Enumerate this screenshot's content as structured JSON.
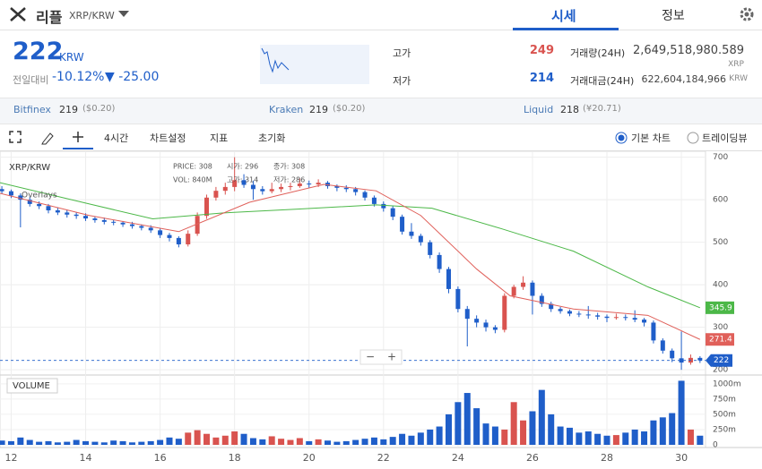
{
  "header": {
    "name": "리플",
    "pair": "XRP/KRW",
    "tabs": [
      "시세",
      "정보"
    ]
  },
  "quote": {
    "price": "222",
    "unit": "KRW",
    "change_label": "전일대비",
    "change_pct": "-10.12%",
    "change_abs": "▼ -25.00"
  },
  "stats": {
    "high_label": "고가",
    "high": "249",
    "low_label": "저가",
    "low": "214",
    "volume_label": "거래량(24H)",
    "volume": "2,649,518,980.589",
    "volume_unit": "XRP",
    "amount_label": "거래대금(24H)",
    "amount": "622,604,184,966",
    "amount_unit": "KRW"
  },
  "exchanges": [
    {
      "name": "Bitfinex",
      "price": "219",
      "usd": "($0.20)"
    },
    {
      "name": "Kraken",
      "price": "219",
      "usd": "($0.20)"
    },
    {
      "name": "Liquid",
      "price": "218",
      "usd": "(¥20.71)"
    }
  ],
  "toolbar": {
    "interval": "4시간",
    "settings": "차트설정",
    "indicators": "지표",
    "reset": "초기화",
    "basic": "기본 차트",
    "tradingview": "트레이딩뷰"
  },
  "chart_data": {
    "type": "candlestick",
    "title": "XRP/KRW",
    "legend": [
      "PRICE: 308",
      "시가: 296",
      "종가: 308",
      "VOL: 840M",
      "고가: 314",
      "저가: 286"
    ],
    "overlays_label": "Overlays",
    "volume_title": "VOLUME",
    "zoom": [
      "−",
      "+"
    ],
    "up_color": "#d9534f",
    "down_color": "#1f5ec9",
    "xlim": [
      11.7,
      30.6
    ],
    "xticks": [
      12,
      14,
      16,
      18,
      20,
      22,
      24,
      26,
      28,
      30
    ],
    "ylim": [
      194,
      714
    ],
    "yticks": [
      200,
      300,
      400,
      500,
      600,
      700
    ],
    "vlim": [
      0,
      1100
    ],
    "vticks": [
      0,
      {
        "value": 250,
        "label": "250m"
      },
      {
        "value": 500,
        "label": "500m"
      },
      {
        "value": 750,
        "label": "750m"
      },
      {
        "value": 1000,
        "label": "1000m"
      }
    ],
    "x": [
      11.75,
      12,
      12.25,
      12.5,
      12.75,
      13,
      13.25,
      13.5,
      13.75,
      14,
      14.25,
      14.5,
      14.75,
      15,
      15.25,
      15.5,
      15.75,
      16,
      16.25,
      16.5,
      16.75,
      17,
      17.25,
      17.5,
      17.75,
      18,
      18.25,
      18.5,
      18.75,
      19,
      19.25,
      19.5,
      19.75,
      20,
      20.25,
      20.5,
      20.75,
      21,
      21.25,
      21.5,
      21.75,
      22,
      22.25,
      22.5,
      22.75,
      23,
      23.25,
      23.5,
      23.75,
      24,
      24.25,
      24.5,
      24.75,
      25,
      25.25,
      25.5,
      25.75,
      26,
      26.25,
      26.5,
      26.75,
      27,
      27.25,
      27.5,
      27.75,
      28,
      28.25,
      28.5,
      28.75,
      29,
      29.25,
      29.5,
      29.75,
      30,
      30.25,
      30.5
    ],
    "ohlc": [
      [
        625,
        632,
        614,
        620
      ],
      [
        620,
        624,
        604,
        610
      ],
      [
        610,
        615,
        535,
        600
      ],
      [
        600,
        606,
        584,
        590
      ],
      [
        590,
        596,
        578,
        585
      ],
      [
        585,
        590,
        568,
        575
      ],
      [
        575,
        582,
        564,
        570
      ],
      [
        570,
        576,
        558,
        565
      ],
      [
        565,
        570,
        555,
        562
      ],
      [
        562,
        568,
        550,
        556
      ],
      [
        556,
        560,
        546,
        552
      ],
      [
        552,
        558,
        542,
        548
      ],
      [
        548,
        553,
        540,
        546
      ],
      [
        546,
        550,
        536,
        542
      ],
      [
        542,
        548,
        532,
        538
      ],
      [
        538,
        542,
        528,
        534
      ],
      [
        534,
        540,
        522,
        528
      ],
      [
        528,
        532,
        510,
        517
      ],
      [
        517,
        522,
        502,
        510
      ],
      [
        510,
        514,
        488,
        495
      ],
      [
        495,
        528,
        490,
        520
      ],
      [
        520,
        570,
        515,
        562
      ],
      [
        562,
        612,
        555,
        605
      ],
      [
        605,
        630,
        598,
        621
      ],
      [
        621,
        640,
        612,
        630
      ],
      [
        630,
        700,
        620,
        646
      ],
      [
        646,
        660,
        628,
        635
      ],
      [
        635,
        645,
        600,
        625
      ],
      [
        625,
        632,
        612,
        620
      ],
      [
        620,
        640,
        615,
        625
      ],
      [
        625,
        638,
        618,
        630
      ],
      [
        630,
        640,
        622,
        632
      ],
      [
        632,
        650,
        628,
        638
      ],
      [
        638,
        645,
        628,
        636
      ],
      [
        636,
        648,
        630,
        640
      ],
      [
        640,
        644,
        626,
        632
      ],
      [
        632,
        636,
        620,
        628
      ],
      [
        628,
        634,
        618,
        625
      ],
      [
        625,
        630,
        610,
        618
      ],
      [
        618,
        622,
        598,
        605
      ],
      [
        605,
        610,
        584,
        590
      ],
      [
        590,
        596,
        572,
        580
      ],
      [
        580,
        586,
        552,
        560
      ],
      [
        560,
        565,
        518,
        525
      ],
      [
        525,
        545,
        508,
        515
      ],
      [
        515,
        520,
        492,
        500
      ],
      [
        500,
        505,
        462,
        470
      ],
      [
        470,
        476,
        428,
        437
      ],
      [
        437,
        442,
        380,
        390
      ],
      [
        390,
        396,
        335,
        343
      ],
      [
        343,
        350,
        255,
        320
      ],
      [
        320,
        328,
        300,
        311
      ],
      [
        311,
        318,
        290,
        300
      ],
      [
        300,
        305,
        286,
        294
      ],
      [
        294,
        380,
        288,
        374
      ],
      [
        374,
        400,
        368,
        395
      ],
      [
        395,
        420,
        388,
        405
      ],
      [
        405,
        410,
        330,
        374
      ],
      [
        374,
        380,
        348,
        355
      ],
      [
        355,
        360,
        336,
        343
      ],
      [
        343,
        348,
        332,
        338
      ],
      [
        338,
        342,
        326,
        332
      ],
      [
        332,
        338,
        324,
        330
      ],
      [
        330,
        350,
        320,
        328
      ],
      [
        328,
        334,
        318,
        325
      ],
      [
        325,
        330,
        312,
        322
      ],
      [
        322,
        332,
        318,
        324
      ],
      [
        324,
        330,
        316,
        322
      ],
      [
        322,
        340,
        312,
        318
      ],
      [
        318,
        322,
        302,
        311
      ],
      [
        311,
        316,
        262,
        269
      ],
      [
        269,
        274,
        238,
        245
      ],
      [
        245,
        250,
        218,
        227
      ],
      [
        227,
        290,
        200,
        217
      ],
      [
        217,
        236,
        212,
        228
      ],
      [
        228,
        232,
        216,
        222
      ]
    ],
    "volume": [
      70,
      60,
      120,
      80,
      50,
      60,
      40,
      50,
      80,
      60,
      50,
      40,
      70,
      60,
      40,
      50,
      60,
      80,
      120,
      100,
      200,
      240,
      180,
      120,
      150,
      220,
      180,
      110,
      90,
      140,
      100,
      80,
      110,
      60,
      90,
      70,
      50,
      60,
      80,
      100,
      120,
      90,
      130,
      180,
      150,
      200,
      250,
      300,
      500,
      700,
      850,
      600,
      350,
      300,
      250,
      700,
      400,
      550,
      900,
      500,
      300,
      280,
      200,
      220,
      180,
      150,
      160,
      200,
      250,
      220,
      400,
      450,
      520,
      1050,
      250,
      150
    ],
    "lines": [
      {
        "color": "#4cb848",
        "x": [
          11.7,
          14.1,
          15.8,
          17.7,
          19.7,
          21.8,
          23.3,
          25.2,
          27.1,
          29.1,
          30.5
        ],
        "values": [
          640,
          590,
          555,
          569,
          578,
          588,
          580,
          531,
          479,
          395,
          345.9
        ]
      },
      {
        "color": "#e0605a",
        "x": [
          11.7,
          14.1,
          16.5,
          18.4,
          20.4,
          21.8,
          23.0,
          24.5,
          25.4,
          27.1,
          29.1,
          30.5
        ],
        "values": [
          615,
          563,
          525,
          594,
          636,
          621,
          563,
          437,
          374,
          343,
          328,
          271.4
        ]
      }
    ],
    "last": 222,
    "last_color": "#1f5ec9"
  }
}
